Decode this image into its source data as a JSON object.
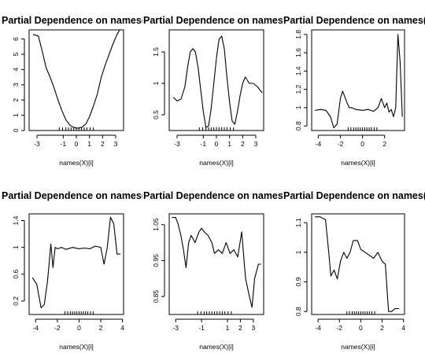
{
  "chart_data": [
    {
      "type": "line",
      "title": "Partial Dependence on names(X)[i]",
      "xlabel": "names(X)[i]",
      "ylabel": "",
      "xlim": [
        -3.6,
        3.6
      ],
      "ylim": [
        0,
        6.6
      ],
      "xticks": [
        -3,
        -1,
        0,
        1,
        2,
        3
      ],
      "yticks": [
        0,
        1,
        2,
        3,
        4,
        5,
        6
      ],
      "rug": [
        -1.3,
        -1.05,
        -0.8,
        -0.6,
        -0.4,
        -0.2,
        0,
        0.2,
        0.4,
        0.6,
        0.8,
        1.05,
        1.3
      ],
      "series": [
        {
          "x": [
            -3.3,
            -2.9,
            -2.6,
            -2.3,
            -2.0,
            -1.7,
            -1.4,
            -1.1,
            -0.8,
            -0.5,
            -0.2,
            0.1,
            0.4,
            0.7,
            1.0,
            1.3,
            1.6,
            1.9,
            2.2,
            2.5,
            2.8,
            3.1,
            3.3
          ],
          "y": [
            6.3,
            6.2,
            5.2,
            4.1,
            3.5,
            2.8,
            2.0,
            1.3,
            0.7,
            0.35,
            0.2,
            0.15,
            0.2,
            0.4,
            0.9,
            1.6,
            2.4,
            3.5,
            4.3,
            5.0,
            5.7,
            6.3,
            6.6
          ]
        }
      ]
    },
    {
      "type": "line",
      "title": "Partial Dependence on names(X)[i]",
      "xlabel": "names(X)[i]",
      "ylabel": "",
      "xlim": [
        -3.6,
        3.6
      ],
      "ylim": [
        0.25,
        1.85
      ],
      "xticks": [
        -3,
        -1,
        0,
        1,
        2,
        3
      ],
      "yticks": [
        0.5,
        1.0,
        1.5
      ],
      "rug": [
        -1.3,
        -1.05,
        -0.8,
        -0.6,
        -0.4,
        -0.2,
        0,
        0.2,
        0.4,
        0.6,
        0.8,
        1.05,
        1.3
      ],
      "series": [
        {
          "x": [
            -3.3,
            -3.0,
            -2.7,
            -2.4,
            -2.2,
            -2.0,
            -1.8,
            -1.6,
            -1.4,
            -1.2,
            -1.0,
            -0.8,
            -0.6,
            -0.4,
            -0.2,
            0.0,
            0.2,
            0.4,
            0.6,
            0.8,
            1.0,
            1.2,
            1.4,
            1.6,
            1.8,
            2.0,
            2.2,
            2.5,
            2.8,
            3.1,
            3.5
          ],
          "y": [
            0.78,
            0.72,
            0.75,
            0.95,
            1.25,
            1.5,
            1.55,
            1.5,
            1.25,
            0.9,
            0.55,
            0.3,
            0.32,
            0.6,
            1.0,
            1.4,
            1.7,
            1.75,
            1.55,
            1.1,
            0.7,
            0.4,
            0.35,
            0.55,
            0.8,
            1.0,
            1.1,
            1.0,
            1.0,
            0.95,
            0.85
          ]
        }
      ]
    },
    {
      "type": "line",
      "title": "Partial Dependence on names(X)[i]",
      "xlabel": "names(X)[i]",
      "ylabel": "",
      "xlim": [
        -4.6,
        3.8
      ],
      "ylim": [
        0.75,
        1.85
      ],
      "xticks": [
        -4,
        -2,
        0,
        2
      ],
      "yticks": [
        0.8,
        1.0,
        1.2,
        1.4,
        1.6,
        1.8
      ],
      "rug": [
        -1.3,
        -1.05,
        -0.8,
        -0.6,
        -0.4,
        -0.2,
        0,
        0.2,
        0.4,
        0.6,
        0.8,
        1.05,
        1.3
      ],
      "series": [
        {
          "x": [
            -4.3,
            -3.8,
            -3.3,
            -2.9,
            -2.6,
            -2.3,
            -2.0,
            -1.8,
            -1.6,
            -1.4,
            -1.2,
            -1.0,
            -0.6,
            0.0,
            0.5,
            1.0,
            1.4,
            1.7,
            2.0,
            2.2,
            2.4,
            2.6,
            2.8,
            3.0,
            3.2,
            3.4,
            3.6
          ],
          "y": [
            0.97,
            0.98,
            0.97,
            0.9,
            0.78,
            0.82,
            1.1,
            1.18,
            1.12,
            1.05,
            1.0,
            1.0,
            0.98,
            0.97,
            0.98,
            0.96,
            1.0,
            1.1,
            1.0,
            1.05,
            0.95,
            0.98,
            0.9,
            1.0,
            1.8,
            1.5,
            0.9
          ]
        }
      ]
    },
    {
      "type": "line",
      "title": "Partial Dependence on names(X)[i]",
      "xlabel": "names(X)[i]",
      "ylabel": "",
      "xlim": [
        -4.6,
        4.1
      ],
      "ylim": [
        0.0,
        1.5
      ],
      "xticks": [
        -4,
        -2,
        0,
        2,
        4
      ],
      "yticks": [
        0.2,
        0.6,
        1.0,
        1.4
      ],
      "rug": [
        -1.3,
        -1.05,
        -0.8,
        -0.6,
        -0.4,
        -0.2,
        0,
        0.2,
        0.4,
        0.6,
        0.8,
        1.05,
        1.3
      ],
      "series": [
        {
          "x": [
            -4.3,
            -3.9,
            -3.5,
            -3.2,
            -2.9,
            -2.6,
            -2.4,
            -2.2,
            -2.0,
            -1.6,
            -1.2,
            -0.6,
            0.0,
            0.5,
            1.0,
            1.5,
            2.0,
            2.3,
            2.6,
            2.9,
            3.2,
            3.5,
            3.8
          ],
          "y": [
            0.55,
            0.45,
            0.1,
            0.15,
            0.5,
            1.05,
            0.7,
            1.0,
            0.98,
            1.0,
            0.97,
            1.0,
            0.98,
            0.99,
            0.98,
            1.02,
            1.0,
            0.75,
            1.0,
            1.45,
            1.35,
            0.9,
            0.9
          ]
        }
      ]
    },
    {
      "type": "line",
      "title": "Partial Dependence on names(X)[i]",
      "xlabel": "names(X)[i]",
      "ylabel": "",
      "xlim": [
        -3.5,
        3.8
      ],
      "ylim": [
        0.8,
        1.08
      ],
      "xticks": [
        -3,
        -1,
        1,
        2,
        3
      ],
      "yticks": [
        0.85,
        0.95,
        1.05
      ],
      "rug": [
        -1.3,
        -1.05,
        -0.8,
        -0.6,
        -0.4,
        -0.2,
        0,
        0.2,
        0.4,
        0.6,
        0.8,
        1.05,
        1.3
      ],
      "series": [
        {
          "x": [
            -3.3,
            -3.0,
            -2.8,
            -2.6,
            -2.4,
            -2.2,
            -2.0,
            -1.8,
            -1.5,
            -1.2,
            -1.0,
            -0.8,
            -0.5,
            -0.2,
            0.0,
            0.3,
            0.6,
            0.9,
            1.2,
            1.5,
            1.8,
            2.1,
            2.4,
            2.7,
            2.9,
            3.1,
            3.4,
            3.6
          ],
          "y": [
            1.07,
            1.07,
            1.05,
            1.02,
            0.98,
            0.93,
            1.0,
            1.02,
            1.0,
            1.03,
            1.04,
            1.03,
            1.02,
            1.0,
            0.97,
            0.98,
            0.97,
            1.0,
            0.97,
            0.98,
            0.96,
            1.03,
            0.9,
            0.85,
            0.82,
            0.9,
            0.94,
            0.94
          ]
        }
      ]
    },
    {
      "type": "line",
      "title": "Partial Dependence on names(X)[i]",
      "xlabel": "names(X)[i]",
      "ylabel": "",
      "xlim": [
        -4.6,
        4.1
      ],
      "ylim": [
        0.79,
        1.13
      ],
      "xticks": [
        -4,
        -2,
        0,
        2,
        4
      ],
      "yticks": [
        0.8,
        0.9,
        1.0,
        1.1
      ],
      "rug": [
        -1.3,
        -1.05,
        -0.8,
        -0.6,
        -0.4,
        -0.2,
        0,
        0.2,
        0.4,
        0.6,
        0.8,
        1.05,
        1.3
      ],
      "series": [
        {
          "x": [
            -4.3,
            -3.8,
            -3.3,
            -3.0,
            -2.8,
            -2.5,
            -2.2,
            -1.9,
            -1.6,
            -1.3,
            -1.0,
            -0.7,
            -0.3,
            0.0,
            0.4,
            0.8,
            1.2,
            1.6,
            2.0,
            2.3,
            2.6,
            2.9,
            3.2,
            3.6
          ],
          "y": [
            1.12,
            1.12,
            1.11,
            1.0,
            0.92,
            0.94,
            0.91,
            0.97,
            1.0,
            0.98,
            1.0,
            1.04,
            1.04,
            1.01,
            1.0,
            0.99,
            0.98,
            1.0,
            0.97,
            0.96,
            0.8,
            0.8,
            0.81,
            0.81
          ]
        }
      ]
    }
  ]
}
